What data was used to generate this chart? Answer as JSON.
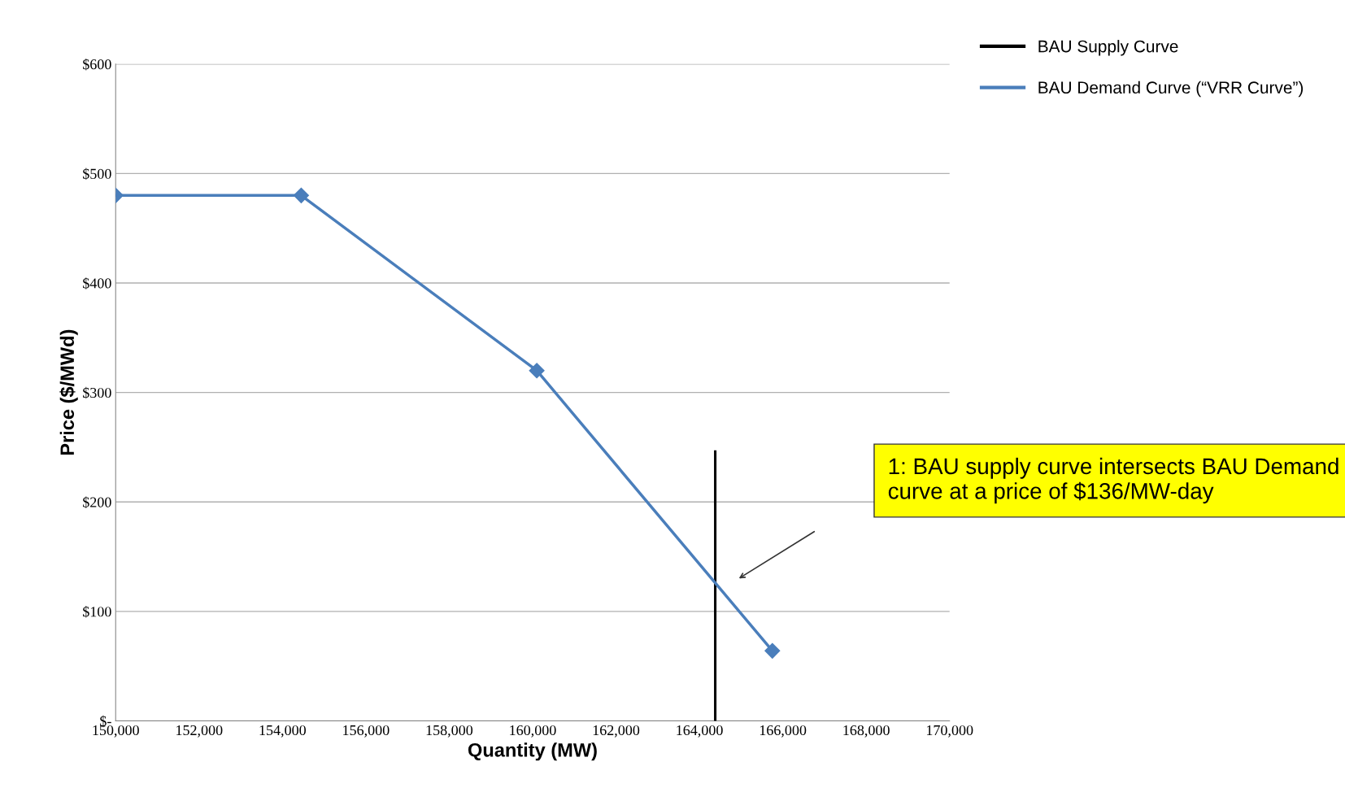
{
  "chart_data": {
    "type": "line",
    "xlabel": "Quantity (MW)",
    "ylabel": "Price ($/MWd)",
    "series": [
      {
        "name": "BAU Supply Curve",
        "color": "#000000",
        "x": [
          164380,
          164380
        ],
        "values": [
          0,
          246
        ],
        "marker": "none"
      },
      {
        "name": "BAU Demand Curve (“VRR Curve”)",
        "color": "#4a7ebb",
        "x": [
          150000,
          154450,
          160100,
          165750
        ],
        "values": [
          480,
          480,
          320,
          64
        ],
        "marker": "diamond"
      }
    ],
    "xlim": [
      150000,
      170000
    ],
    "xticks": [
      {
        "value": 150000,
        "label": "150,000"
      },
      {
        "value": 152000,
        "label": "152,000"
      },
      {
        "value": 154000,
        "label": "154,000"
      },
      {
        "value": 156000,
        "label": "156,000"
      },
      {
        "value": 158000,
        "label": "158,000"
      },
      {
        "value": 160000,
        "label": "160,000"
      },
      {
        "value": 162000,
        "label": "162,000"
      },
      {
        "value": 164000,
        "label": "164,000"
      },
      {
        "value": 166000,
        "label": "166,000"
      },
      {
        "value": 168000,
        "label": "168,000"
      },
      {
        "value": 170000,
        "label": "170,000"
      }
    ],
    "ylim": [
      0,
      600
    ],
    "yticks": [
      {
        "value": 0,
        "label": "$-"
      },
      {
        "value": 100,
        "label": "$100"
      },
      {
        "value": 200,
        "label": "$200"
      },
      {
        "value": 300,
        "label": "$300"
      },
      {
        "value": 400,
        "label": "$400"
      },
      {
        "value": 500,
        "label": "$500"
      },
      {
        "value": 600,
        "label": "$600"
      }
    ],
    "grid": "y",
    "legend": "right",
    "line_style": "solid",
    "annotations": [
      "1: BAU supply curve intersects BAU Demand curve at a price of $136/MW-day"
    ]
  }
}
